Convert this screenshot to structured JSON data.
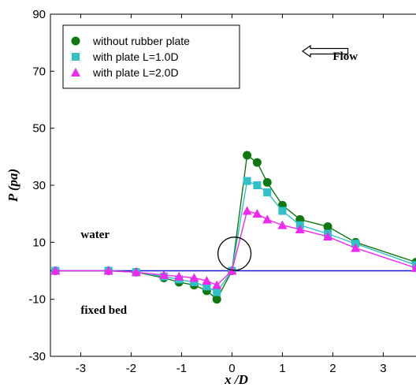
{
  "chart_data": {
    "type": "line",
    "xlabel": "x /D",
    "ylabel": "P (pa)",
    "xlim": [
      -3.6,
      3.65
    ],
    "ylim": [
      -30,
      90
    ],
    "xticks": [
      -3,
      -2,
      -1,
      0,
      1,
      2,
      3
    ],
    "yticks": [
      -30,
      -10,
      10,
      30,
      50,
      70,
      90
    ],
    "xtick_labels": [
      "-3",
      "-2",
      "-1",
      "0",
      "1",
      "2",
      "3"
    ],
    "ytick_labels": [
      "-30",
      "-10",
      "10",
      "30",
      "50",
      "70",
      "90"
    ],
    "grid": false,
    "legend_position": "top-left",
    "series": [
      {
        "name": "without rubber plate",
        "color": "#107810",
        "marker": "circle",
        "x": [
          -3.5,
          -2.45,
          -1.9,
          -1.35,
          -1.05,
          -0.75,
          -0.5,
          -0.3,
          0.0,
          0.3,
          0.5,
          0.7,
          1.0,
          1.35,
          1.9,
          2.45,
          3.65
        ],
        "y": [
          0,
          0,
          -0.5,
          -2.5,
          -4,
          -5,
          -7,
          -10,
          0,
          40.5,
          38,
          31,
          23,
          18,
          15.5,
          10,
          3
        ]
      },
      {
        "name": "with plate L=1.0D",
        "color": "#30c0c8",
        "marker": "square",
        "x": [
          -3.5,
          -2.45,
          -1.9,
          -1.35,
          -1.05,
          -0.75,
          -0.5,
          -0.3,
          0.0,
          0.3,
          0.5,
          0.7,
          1.0,
          1.35,
          1.9,
          2.45,
          3.65
        ],
        "y": [
          0,
          0,
          -0.5,
          -2,
          -3,
          -4,
          -5.5,
          -7.5,
          0,
          31.5,
          30,
          27.5,
          21,
          16,
          13,
          9.5,
          2
        ]
      },
      {
        "name": "with plate L=2.0D",
        "color": "#f028f0",
        "marker": "triangle",
        "x": [
          -3.5,
          -2.45,
          -1.9,
          -1.35,
          -1.05,
          -0.75,
          -0.5,
          -0.3,
          0.0,
          0.3,
          0.5,
          0.7,
          1.0,
          1.35,
          1.9,
          2.45,
          3.65
        ],
        "y": [
          0,
          0,
          -0.5,
          -1.5,
          -2,
          -2.5,
          -3.5,
          -5,
          0,
          21,
          20,
          18,
          16,
          14.5,
          12,
          8,
          1
        ]
      }
    ],
    "reference_line": {
      "y": 0,
      "color": "#1515d8"
    },
    "annotations": [
      {
        "text": "Flow",
        "x": 2.0,
        "y": 74
      },
      {
        "text": "water",
        "x": -3.0,
        "y": 11.5
      },
      {
        "text": "fixed bed",
        "x": -3.0,
        "y": -15
      }
    ],
    "flow_arrow": {
      "direction": "left",
      "x_from": 2.3,
      "x_to": 1.4,
      "y": 77
    },
    "circle_marker": {
      "x": 0.05,
      "y": 6
    }
  }
}
